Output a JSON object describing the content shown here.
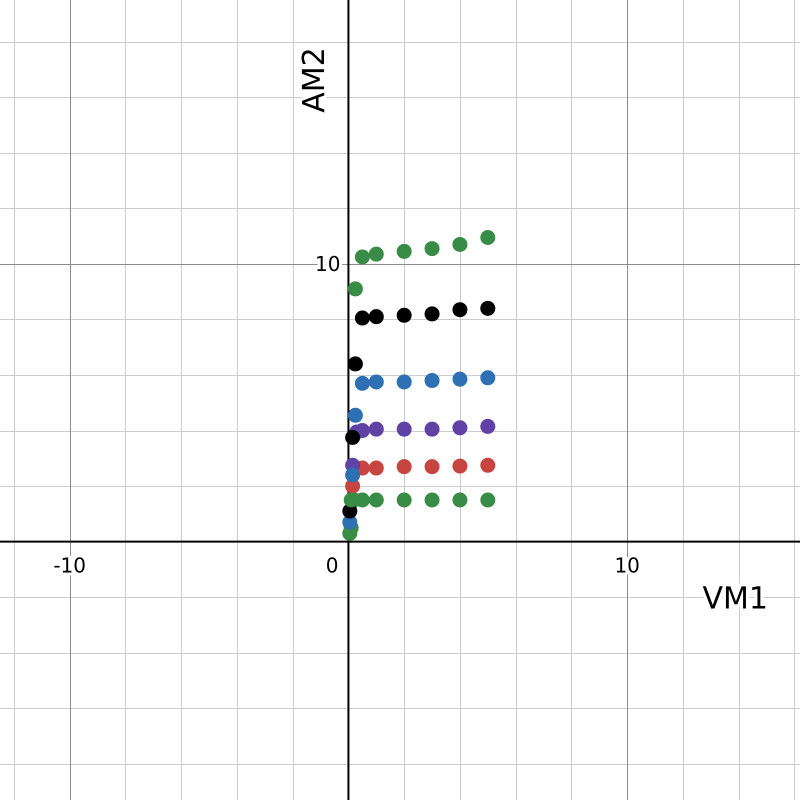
{
  "chart_data": {
    "type": "scatter",
    "title": "",
    "xlabel": "VM1",
    "ylabel": "AM2",
    "xlim": [
      -12.5,
      16.2
    ],
    "ylim": [
      -9.3,
      19.5
    ],
    "grid": true,
    "x_ticks": [
      {
        "value": -10,
        "label": "-10"
      },
      {
        "value": 0,
        "label": "0"
      },
      {
        "value": 10,
        "label": "10"
      }
    ],
    "y_ticks": [
      {
        "value": 10,
        "label": "10"
      }
    ],
    "series": [
      {
        "color": "#388c46",
        "points": [
          [
            0.05,
            0.3
          ],
          [
            0.1,
            0.5
          ],
          [
            0.2,
            1.5
          ],
          [
            0.5,
            1.5
          ],
          [
            1.0,
            1.5
          ],
          [
            2.0,
            1.5
          ],
          [
            3.0,
            1.5
          ],
          [
            4.0,
            1.5
          ],
          [
            5.0,
            1.5
          ]
        ]
      },
      {
        "color": "#c74440",
        "points": [
          [
            0.15,
            2.0
          ],
          [
            0.5,
            2.65
          ],
          [
            1.0,
            2.65
          ],
          [
            2.0,
            2.7
          ],
          [
            3.0,
            2.7
          ],
          [
            4.0,
            2.72
          ],
          [
            5.0,
            2.75
          ]
        ]
      },
      {
        "color": "#6042a6",
        "points": [
          [
            0.15,
            2.75
          ],
          [
            0.3,
            3.95
          ],
          [
            0.5,
            4.0
          ],
          [
            1.0,
            4.05
          ],
          [
            2.0,
            4.05
          ],
          [
            3.0,
            4.05
          ],
          [
            4.0,
            4.1
          ],
          [
            5.0,
            4.15
          ]
        ]
      },
      {
        "color": "#2d70b3",
        "points": [
          [
            0.05,
            0.7
          ],
          [
            0.15,
            2.4
          ],
          [
            0.25,
            4.55
          ],
          [
            0.5,
            5.7
          ],
          [
            1.0,
            5.75
          ],
          [
            2.0,
            5.75
          ],
          [
            3.0,
            5.8
          ],
          [
            4.0,
            5.85
          ],
          [
            5.0,
            5.9
          ]
        ]
      },
      {
        "color": "#000000",
        "points": [
          [
            0.05,
            1.1
          ],
          [
            0.15,
            3.75
          ],
          [
            0.25,
            6.4
          ],
          [
            0.5,
            8.05
          ],
          [
            1.0,
            8.1
          ],
          [
            2.0,
            8.15
          ],
          [
            3.0,
            8.2
          ],
          [
            4.0,
            8.35
          ],
          [
            5.0,
            8.4
          ]
        ]
      },
      {
        "color": "#388c46",
        "points": [
          [
            0.1,
            1.5
          ],
          [
            0.25,
            9.1
          ],
          [
            0.5,
            10.25
          ],
          [
            1.0,
            10.35
          ],
          [
            2.0,
            10.45
          ],
          [
            3.0,
            10.55
          ],
          [
            4.0,
            10.7
          ],
          [
            5.0,
            10.95
          ]
        ]
      }
    ]
  }
}
